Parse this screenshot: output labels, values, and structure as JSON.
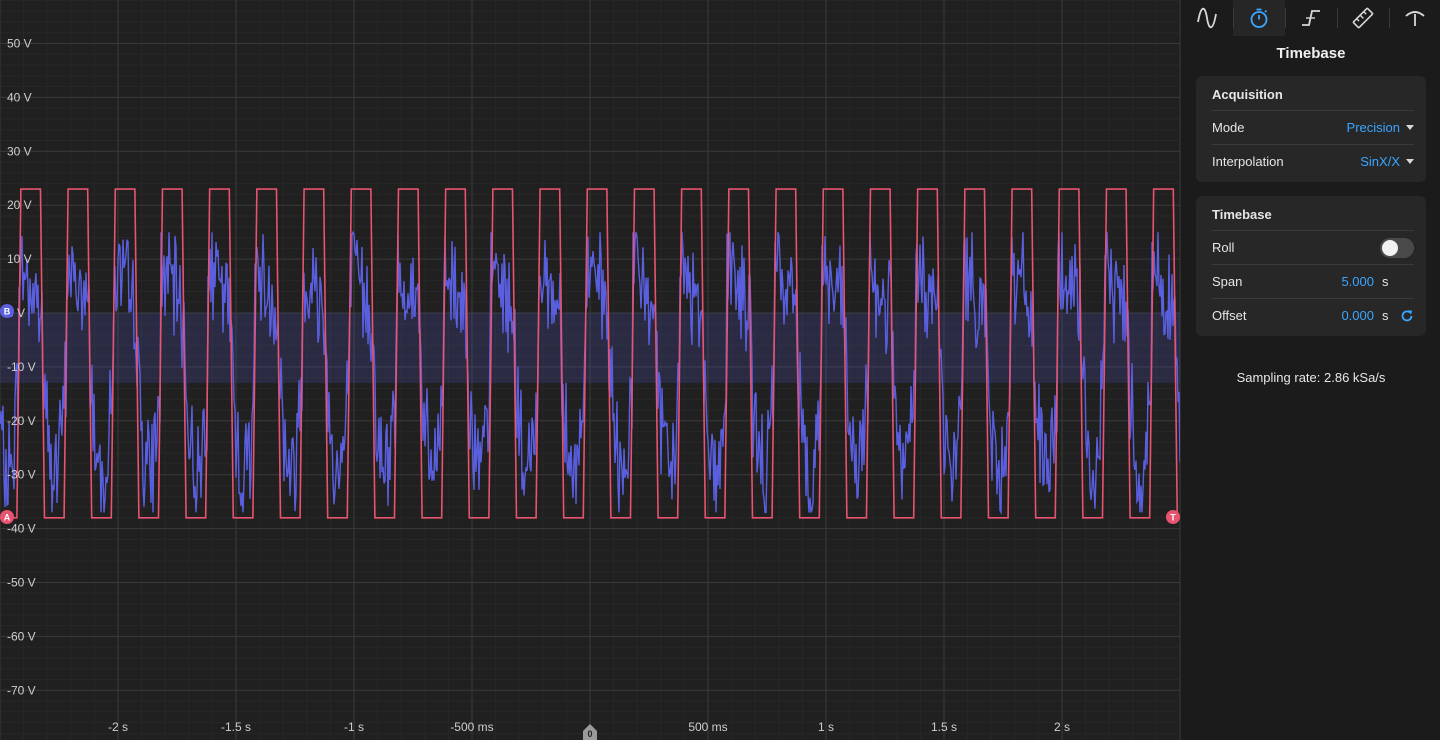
{
  "plot": {
    "y_ticks": [
      "50 V",
      "40 V",
      "30 V",
      "20 V",
      "10 V",
      "0 V",
      "-10 V",
      "-20 V",
      "-30 V",
      "-40 V",
      "-50 V",
      "-60 V",
      "-70 V"
    ],
    "x_ticks": [
      "-2 s",
      "-1.5 s",
      "-1 s",
      "-500 ms",
      "500 ms",
      "1 s",
      "1.5 s",
      "2 s"
    ],
    "markers": {
      "channel_a": "A",
      "channel_b": "B",
      "trigger": "T",
      "zero": "0"
    },
    "colors": {
      "channel_a": "#e8536f",
      "channel_b": "#5a5fe0",
      "background": "#202020",
      "grid": "#3a3a3a"
    }
  },
  "chart_data": {
    "type": "line",
    "xlabel": "",
    "ylabel": "",
    "xlim": [
      -2.5,
      2.5
    ],
    "ylim": [
      -74,
      57
    ],
    "series": [
      {
        "name": "A",
        "kind": "square",
        "period_s": 0.2,
        "low_v": -38,
        "high_v": 23,
        "first_rising_s": -2.42
      },
      {
        "name": "B",
        "kind": "noisy",
        "period_s": 0.2,
        "min_v": -37,
        "max_v": 15
      }
    ]
  },
  "panel": {
    "tabs": [
      {
        "name": "tab-waveform",
        "icon": "sine-wave-icon"
      },
      {
        "name": "tab-timebase",
        "icon": "stopwatch-icon"
      },
      {
        "name": "tab-trigger",
        "icon": "trigger-edge-icon"
      },
      {
        "name": "tab-measure",
        "icon": "ruler-icon"
      },
      {
        "name": "tab-display",
        "icon": "gauge-icon"
      }
    ],
    "title": "Timebase",
    "acquisition": {
      "heading": "Acquisition",
      "mode_label": "Mode",
      "mode_value": "Precision",
      "interp_label": "Interpolation",
      "interp_value": "SinX/X"
    },
    "timebase": {
      "heading": "Timebase",
      "roll_label": "Roll",
      "span_label": "Span",
      "span_value": "5.000",
      "span_unit": "s",
      "offset_label": "Offset",
      "offset_value": "0.000",
      "offset_unit": "s"
    },
    "sampling": "Sampling rate: 2.86 kSa/s"
  }
}
